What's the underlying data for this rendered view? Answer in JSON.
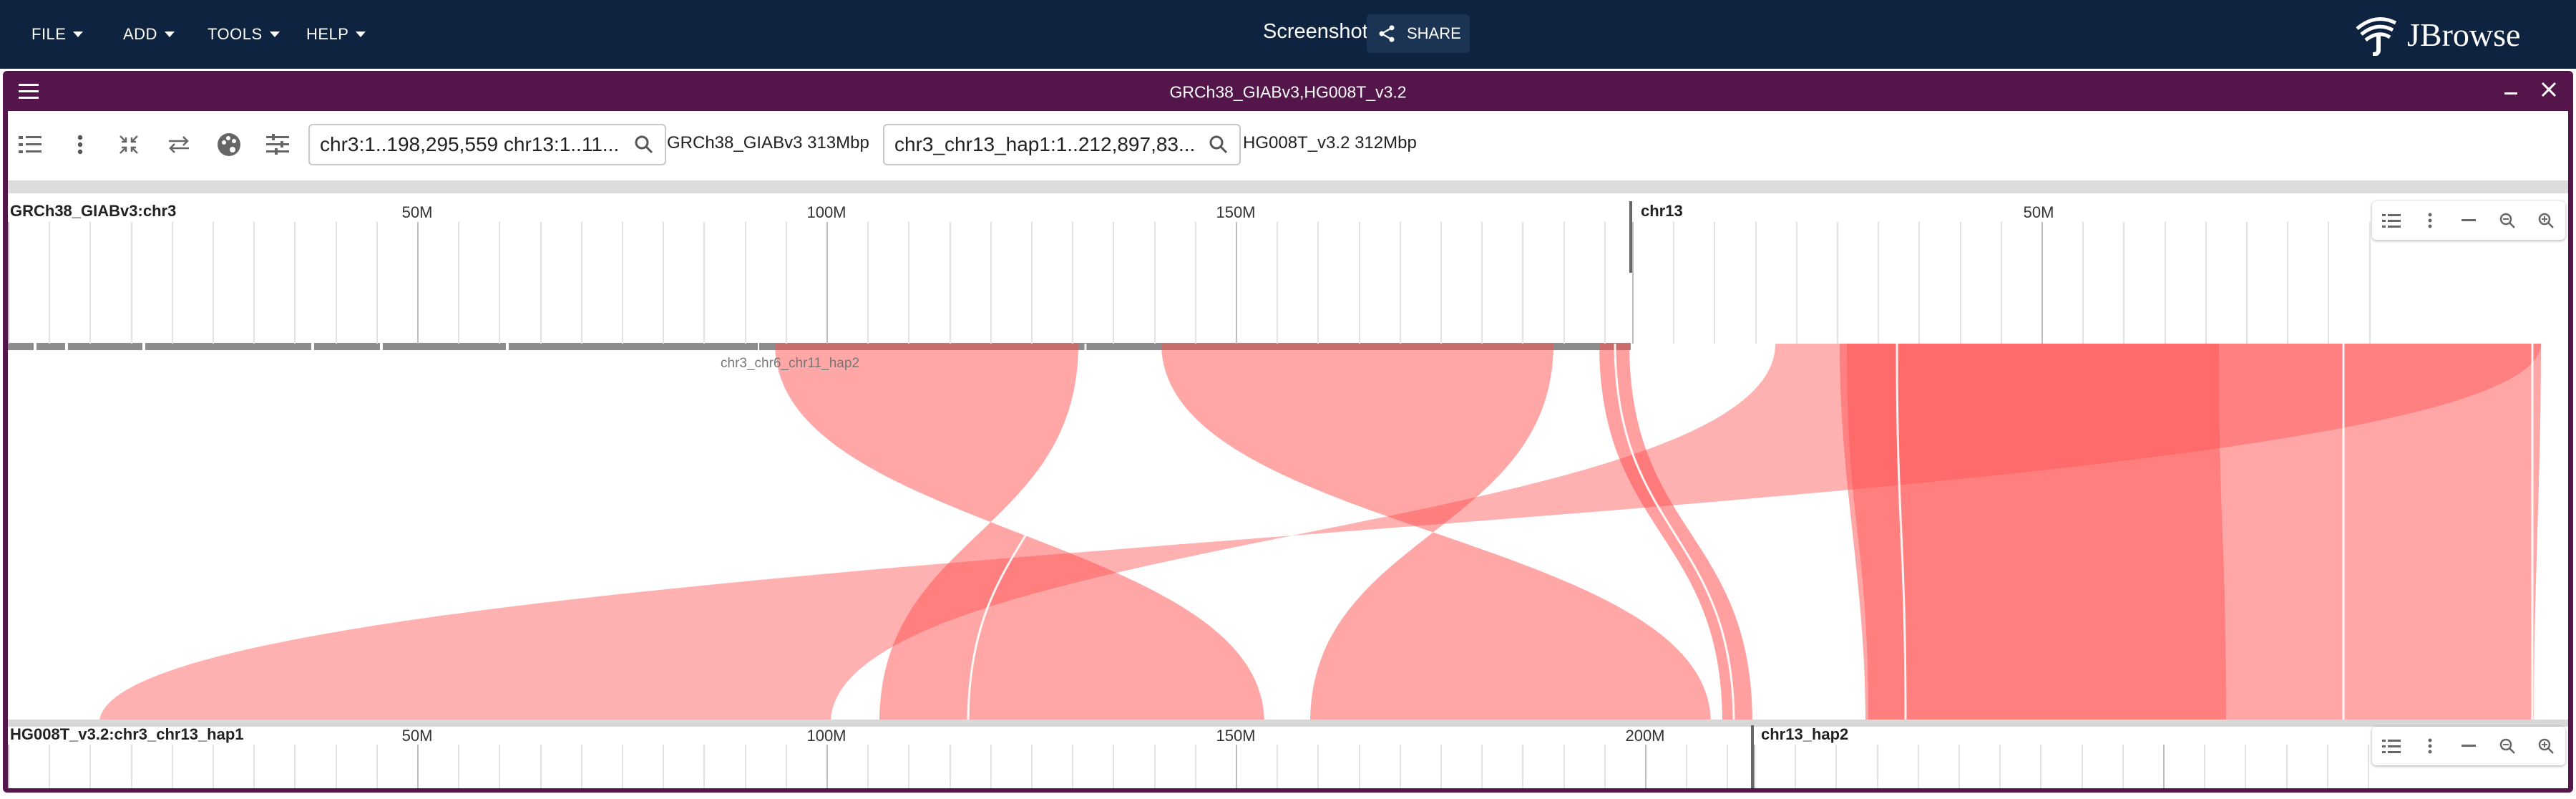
{
  "appbar": {
    "menus": [
      "FILE",
      "ADD",
      "TOOLS",
      "HELP"
    ],
    "session_title": "Screenshot",
    "share_label": "SHARE",
    "brand": "JBrowse"
  },
  "view": {
    "title": "GRCh38_GIABv3,HG008T_v3.2",
    "toolbar": {
      "search_top": "chr3:1..198,295,559 chr13:1..11...",
      "assembly_top": "GRCh38_GIABv3 313Mbp",
      "search_bottom": "chr3_chr13_hap1:1..212,897,83...",
      "assembly_bottom": "HG008T_v3.2 312Mbp"
    },
    "top_ruler": {
      "ref_label": "GRCh38_GIABv3:chr3",
      "ticks": [
        "50M",
        "100M",
        "150M",
        "50M"
      ],
      "second_ref": "chr13"
    },
    "bottom_ruler": {
      "ref_label": "HG008T_v3.2:chr3_chr13_hap1",
      "ticks": [
        "50M",
        "100M",
        "150M",
        "200M"
      ],
      "second_ref": "chr13_hap2"
    },
    "feature_label": "chr3_chr6_chr11_hap2",
    "colors": {
      "appbar": "#0d233f",
      "view_header": "#53154a",
      "synteny": "#ff5050"
    }
  }
}
